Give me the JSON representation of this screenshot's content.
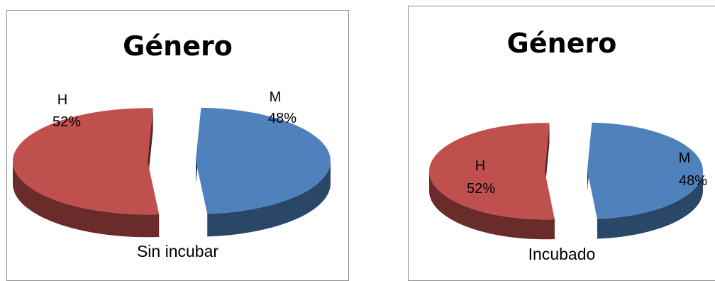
{
  "chart_data": [
    {
      "type": "pie",
      "title": "Género",
      "caption": "Sin incubar",
      "slices": [
        {
          "label": "M",
          "percent_text": "48%",
          "value": 48,
          "color": "#4f81bd"
        },
        {
          "label": "H",
          "percent_text": "52%",
          "value": 52,
          "color": "#c0504d"
        }
      ],
      "style": "3d-exploded"
    },
    {
      "type": "pie",
      "title": "Género",
      "caption": "Incubado",
      "slices": [
        {
          "label": "M",
          "percent_text": "48%",
          "value": 48,
          "color": "#4f81bd"
        },
        {
          "label": "H",
          "percent_text": "52%",
          "value": 52,
          "color": "#c0504d"
        }
      ],
      "style": "3d-exploded"
    }
  ]
}
